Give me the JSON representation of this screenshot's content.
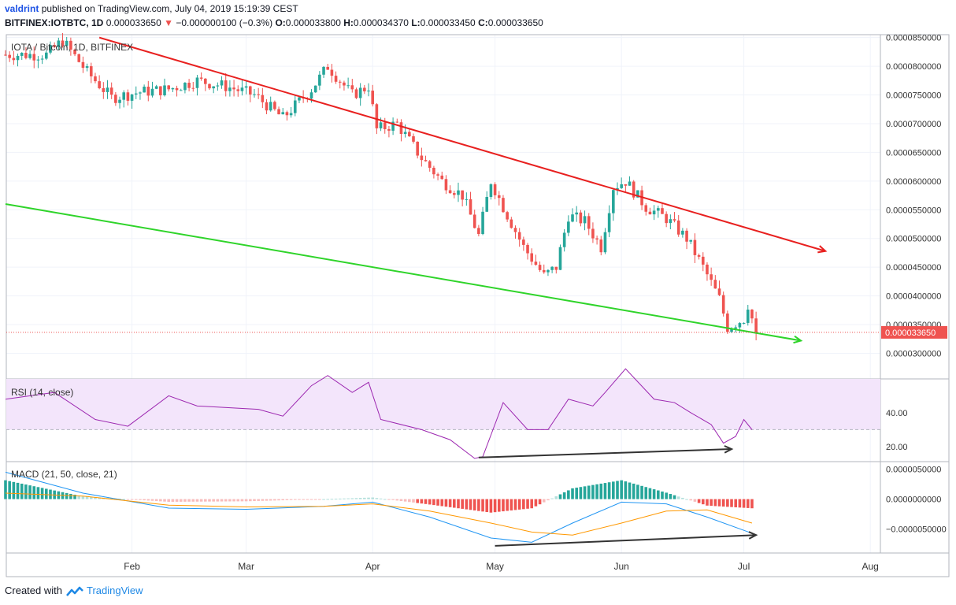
{
  "header": {
    "user": "valdrint",
    "published": "published on TradingView.com, July 04, 2019 15:19:39 CEST",
    "symbol": "BITFINEX:IOTBTC, 1D",
    "last": "0.000033650",
    "change_arrow": "▼",
    "change": "−0.000000100 (−0.3%)",
    "o_label": "O:",
    "o": "0.000033800",
    "h_label": "H:",
    "h": "0.000034370",
    "l_label": "L:",
    "l": "0.000033450",
    "c_label": "C:",
    "c": "0.000033650"
  },
  "footer": {
    "created": "Created with",
    "brand": "TradingView"
  },
  "colors": {
    "up": "#26a69a",
    "down": "#ef5350",
    "trend_upper": "#e8201f",
    "trend_lower": "#2fd42a",
    "rsi": "#9c27b0",
    "rsi_band": "#f3e5fb",
    "macd": "#2196f3",
    "signal": "#ff9800",
    "grid": "#f0f3fa"
  },
  "chart_data": [
    {
      "type": "candlestick",
      "title": "IOTA / Bitcoin, 1D, BITFINEX",
      "ylim": [
        2.65e-05,
        8.55e-05
      ],
      "y_ticks": [
        "0.0000300000",
        "0.0000350000",
        "0.0000400000",
        "0.0000450000",
        "0.0000500000",
        "0.0000550000",
        "0.0000600000",
        "0.0000650000",
        "0.0000700000",
        "0.0000750000",
        "0.0000800000",
        "0.0000850000"
      ],
      "x_ticks": [
        "Feb",
        "Mar",
        "Apr",
        "May",
        "Jun",
        "Jul",
        "Aug"
      ],
      "last_price_label": "0.000033650",
      "approx_close_path": [
        [
          "2019-01-11",
          8.2e-05
        ],
        [
          "2019-01-15",
          8.45e-05
        ],
        [
          "2019-01-21",
          7.9e-05
        ],
        [
          "2019-01-27",
          7.45e-05
        ],
        [
          "2019-02-03",
          7.55e-05
        ],
        [
          "2019-02-10",
          7.6e-05
        ],
        [
          "2019-02-17",
          7.75e-05
        ],
        [
          "2019-02-24",
          7.65e-05
        ],
        [
          "2019-03-03",
          7.5e-05
        ],
        [
          "2019-03-10",
          7.1e-05
        ],
        [
          "2019-03-17",
          7.6e-05
        ],
        [
          "2019-03-21",
          8e-05
        ],
        [
          "2019-03-27",
          7.5e-05
        ],
        [
          "2019-03-31",
          7.65e-05
        ],
        [
          "2019-04-02",
          6.9e-05
        ],
        [
          "2019-04-07",
          7e-05
        ],
        [
          "2019-04-13",
          6.4e-05
        ],
        [
          "2019-04-18",
          6e-05
        ],
        [
          "2019-04-23",
          5.75e-05
        ],
        [
          "2019-04-27",
          5.05e-05
        ],
        [
          "2019-04-30",
          6e-05
        ],
        [
          "2019-05-03",
          5.55e-05
        ],
        [
          "2019-05-08",
          4.85e-05
        ],
        [
          "2019-05-13",
          4.35e-05
        ],
        [
          "2019-05-16",
          4.5e-05
        ],
        [
          "2019-05-19",
          5.4e-05
        ],
        [
          "2019-05-23",
          5.3e-05
        ],
        [
          "2019-05-27",
          4.85e-05
        ],
        [
          "2019-05-30",
          5.9e-05
        ],
        [
          "2019-06-02",
          6e-05
        ],
        [
          "2019-06-07",
          5.55e-05
        ],
        [
          "2019-06-12",
          5.35e-05
        ],
        [
          "2019-06-17",
          5e-05
        ],
        [
          "2019-06-21",
          4.5e-05
        ],
        [
          "2019-06-25",
          3.95e-05
        ],
        [
          "2019-06-27",
          3.45e-05
        ],
        [
          "2019-07-01",
          3.6e-05
        ],
        [
          "2019-07-02",
          3.85e-05
        ],
        [
          "2019-07-04",
          3.36e-05
        ]
      ],
      "trendlines": [
        {
          "name": "upper",
          "from": [
            "2019-01-24",
            8.5e-05
          ],
          "to": [
            "2019-07-21",
            4.78e-05
          ]
        },
        {
          "name": "lower",
          "from": [
            "2019-01-01",
            5.6e-05
          ],
          "to": [
            "2019-07-15",
            3.22e-05
          ]
        }
      ]
    },
    {
      "type": "line",
      "title": "RSI (14, close)",
      "y_ticks": [
        "20.00",
        "40.00"
      ],
      "band": [
        30,
        70
      ],
      "ylim": [
        12,
        60
      ],
      "series": [
        {
          "name": "RSI (14, close)",
          "x": [
            "2019-01-01",
            "2019-01-13",
            "2019-01-23",
            "2019-01-31",
            "2019-02-10",
            "2019-02-17",
            "2019-03-04",
            "2019-03-10",
            "2019-03-17",
            "2019-03-21",
            "2019-03-27",
            "2019-03-31",
            "2019-04-03",
            "2019-04-13",
            "2019-04-20",
            "2019-04-26",
            "2019-04-28",
            "2019-05-03",
            "2019-05-09",
            "2019-05-14",
            "2019-05-19",
            "2019-05-25",
            "2019-05-28",
            "2019-06-02",
            "2019-06-09",
            "2019-06-14",
            "2019-06-18",
            "2019-06-23",
            "2019-06-26",
            "2019-06-29",
            "2019-07-01",
            "2019-07-03"
          ],
          "values": [
            48,
            52,
            36,
            32,
            50,
            44,
            42,
            38,
            56,
            62,
            52,
            58,
            36,
            30,
            24,
            13,
            14,
            46,
            30,
            30,
            48,
            44,
            52,
            66,
            48,
            46,
            40,
            33,
            22,
            26,
            36,
            30
          ]
        }
      ],
      "annotation": {
        "type": "divergence",
        "from": [
          "2019-04-27",
          13.5
        ],
        "to": [
          "2019-06-28",
          18.5
        ]
      }
    },
    {
      "type": "line",
      "title": "MACD (21, 50, close, 21)",
      "y_ticks": [
        "0.0000050000",
        "0.0000000000",
        "−0.0000050000"
      ],
      "ylim": [
        -9e-06,
        6e-06
      ],
      "x": [
        "2019-01-01",
        "2019-01-20",
        "2019-02-10",
        "2019-03-01",
        "2019-03-20",
        "2019-04-01",
        "2019-04-15",
        "2019-04-30",
        "2019-05-10",
        "2019-05-20",
        "2019-06-01",
        "2019-06-12",
        "2019-06-22",
        "2019-07-03"
      ],
      "series": [
        {
          "name": "MACD",
          "values": [
            4.5e-06,
            1e-06,
            -1.5e-06,
            -1.7e-06,
            -1.2e-06,
            -5e-07,
            -3e-06,
            -6.5e-06,
            -7.2e-06,
            -4e-06,
            -5e-07,
            -8e-07,
            -3e-06,
            -5.7e-06
          ]
        },
        {
          "name": "Signal",
          "values": [
            1e-06,
            5e-07,
            -1e-06,
            -1.3e-06,
            -1.2e-06,
            -8e-07,
            -2e-06,
            -4e-06,
            -5.5e-06,
            -6e-06,
            -4e-06,
            -2e-06,
            -1.8e-06,
            -4e-06
          ]
        }
      ],
      "histogram_note": "positive bars teal, negative bars red",
      "annotation": {
        "type": "divergence",
        "from": [
          "2019-05-01",
          -7.8e-06
        ],
        "to": [
          "2019-07-04",
          -6e-06
        ]
      }
    }
  ]
}
